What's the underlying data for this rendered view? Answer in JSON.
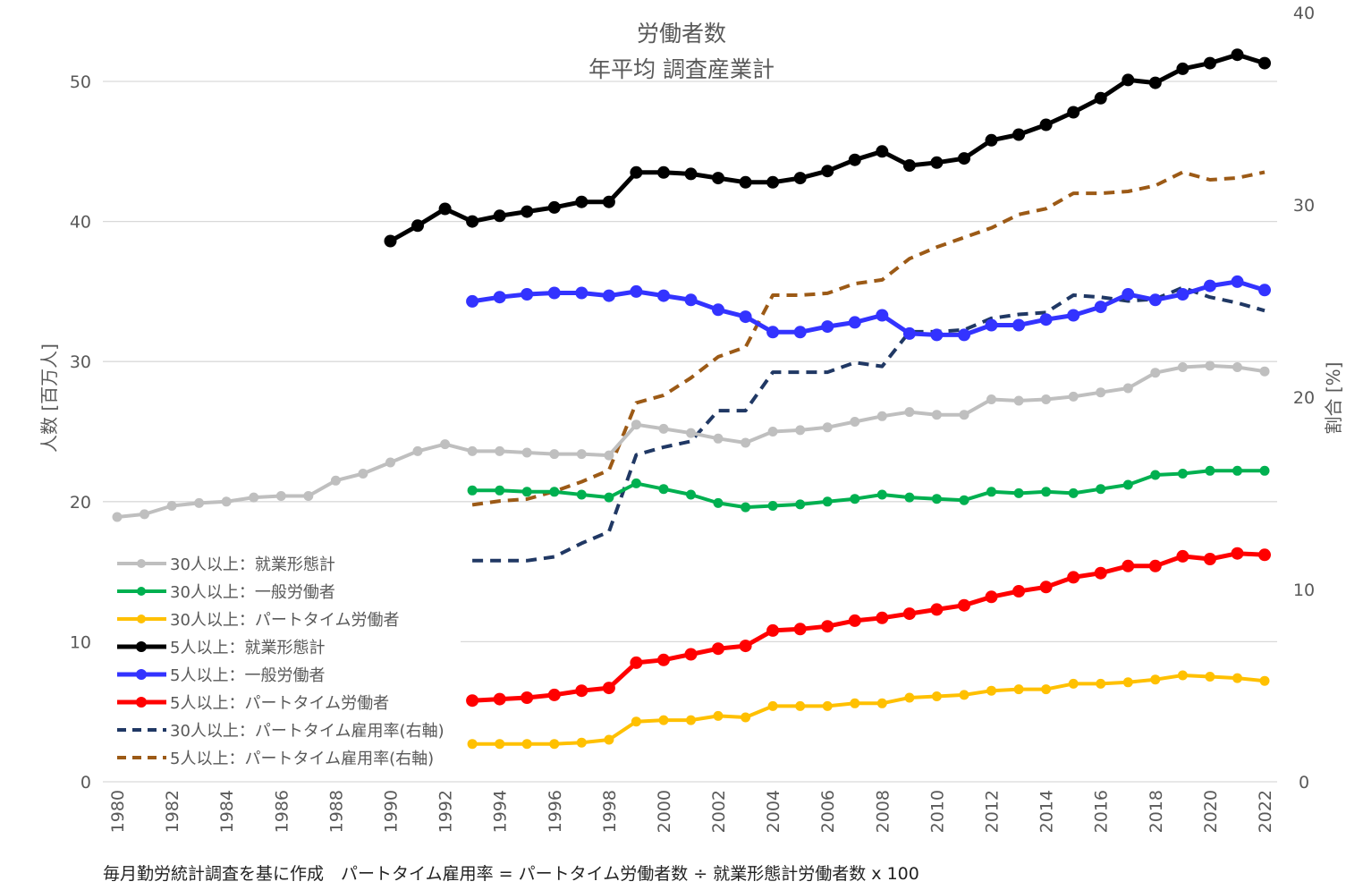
{
  "chart_data": {
    "type": "line",
    "title": [
      "労働者数",
      "年平均 調査産業計"
    ],
    "ylabel_left": "人数 [百万人]",
    "ylabel_right": "割合 [%]",
    "ylim_left": [
      0,
      55
    ],
    "ylim_right": [
      0,
      40
    ],
    "yticks_left": [
      0,
      10,
      20,
      30,
      40,
      50
    ],
    "yticks_right": [
      0,
      10,
      20,
      30,
      40
    ],
    "xlim": [
      1980,
      2022
    ],
    "xticks": [
      1980,
      1982,
      1984,
      1986,
      1988,
      1990,
      1992,
      1994,
      1996,
      1998,
      2000,
      2002,
      2004,
      2006,
      2008,
      2010,
      2012,
      2014,
      2016,
      2018,
      2020,
      2022
    ],
    "grid": true,
    "legend_position": "lower-left",
    "series": [
      {
        "name": "30人以上：就業形態計",
        "axis": "left",
        "color": "#bfbfbf",
        "style": "solid",
        "markers": true,
        "start": 1980,
        "values": [
          18.9,
          19.1,
          19.7,
          19.9,
          20.0,
          20.3,
          20.4,
          20.4,
          21.5,
          22.0,
          22.8,
          23.6,
          24.1,
          23.6,
          23.6,
          23.5,
          23.4,
          23.4,
          23.3,
          25.5,
          25.2,
          24.9,
          24.5,
          24.2,
          25.0,
          25.1,
          25.3,
          25.7,
          26.1,
          26.4,
          26.2,
          26.2,
          27.3,
          27.2,
          27.3,
          27.5,
          27.8,
          28.1,
          29.2,
          29.6,
          29.7,
          29.6,
          29.3
        ]
      },
      {
        "name": "30人以上：一般労働者",
        "axis": "left",
        "color": "#00b050",
        "style": "solid",
        "markers": true,
        "start": 1993,
        "values": [
          20.8,
          20.8,
          20.7,
          20.7,
          20.5,
          20.3,
          21.3,
          20.9,
          20.5,
          19.9,
          19.6,
          19.7,
          19.8,
          20.0,
          20.2,
          20.5,
          20.3,
          20.2,
          20.1,
          20.7,
          20.6,
          20.7,
          20.6,
          20.9,
          21.2,
          21.9,
          22.0,
          22.2,
          22.2,
          22.2
        ]
      },
      {
        "name": "30人以上：パートタイム労働者",
        "axis": "left",
        "color": "#ffc000",
        "style": "solid",
        "markers": true,
        "start": 1993,
        "values": [
          2.7,
          2.7,
          2.7,
          2.7,
          2.8,
          3.0,
          4.3,
          4.4,
          4.4,
          4.7,
          4.6,
          5.4,
          5.4,
          5.4,
          5.6,
          5.6,
          6.0,
          6.1,
          6.2,
          6.5,
          6.6,
          6.6,
          7.0,
          7.0,
          7.1,
          7.3,
          7.6,
          7.5,
          7.4,
          7.2
        ]
      },
      {
        "name": "5人以上：就業形態計",
        "axis": "left",
        "color": "#000000",
        "style": "solid",
        "markers": true,
        "start": 1990,
        "values": [
          38.6,
          39.7,
          40.9,
          40.0,
          40.4,
          40.7,
          41.0,
          41.4,
          41.4,
          43.5,
          43.5,
          43.4,
          43.1,
          42.8,
          42.8,
          43.1,
          43.6,
          44.4,
          45.0,
          44.0,
          44.2,
          44.5,
          45.8,
          46.2,
          46.9,
          47.8,
          48.8,
          50.1,
          49.9,
          50.9,
          51.3,
          51.9,
          51.3
        ]
      },
      {
        "name": "5人以上：一般労働者",
        "axis": "left",
        "color": "#3333ff",
        "style": "solid",
        "markers": true,
        "start": 1993,
        "values": [
          34.3,
          34.6,
          34.8,
          34.9,
          34.9,
          34.7,
          35.0,
          34.7,
          34.4,
          33.7,
          33.2,
          32.1,
          32.1,
          32.5,
          32.8,
          33.3,
          32.0,
          31.9,
          31.9,
          32.6,
          32.6,
          33.0,
          33.3,
          33.9,
          34.8,
          34.4,
          34.8,
          35.4,
          35.7,
          35.1
        ]
      },
      {
        "name": "5人以上：パートタイム労働者",
        "axis": "left",
        "color": "#ff0000",
        "style": "solid",
        "markers": true,
        "start": 1993,
        "values": [
          5.8,
          5.9,
          6.0,
          6.2,
          6.5,
          6.7,
          8.5,
          8.7,
          9.1,
          9.5,
          9.7,
          10.8,
          10.9,
          11.1,
          11.5,
          11.7,
          12.0,
          12.3,
          12.6,
          13.2,
          13.6,
          13.9,
          14.6,
          14.9,
          15.4,
          15.4,
          16.1,
          15.9,
          16.3,
          16.2
        ]
      },
      {
        "name": "30人以上：パートタイム雇用率(右軸)",
        "axis": "right",
        "color": "#203864",
        "style": "dashed",
        "markers": false,
        "start": 1993,
        "values": [
          11.5,
          11.5,
          11.5,
          11.7,
          12.4,
          13.0,
          17.0,
          17.4,
          17.7,
          19.3,
          19.3,
          21.3,
          21.3,
          21.3,
          21.8,
          21.6,
          23.4,
          23.4,
          23.5,
          24.1,
          24.3,
          24.4,
          25.3,
          25.2,
          25.0,
          25.1,
          25.7,
          25.2,
          24.9,
          24.5
        ]
      },
      {
        "name": "5人以上：パートタイム雇用率(右軸)",
        "axis": "right",
        "color": "#9c5a16",
        "style": "dashed",
        "markers": false,
        "start": 1993,
        "values": [
          14.4,
          14.6,
          14.7,
          15.1,
          15.6,
          16.2,
          19.7,
          20.1,
          21.0,
          22.1,
          22.6,
          25.3,
          25.3,
          25.4,
          25.9,
          26.1,
          27.2,
          27.8,
          28.3,
          28.8,
          29.5,
          29.8,
          30.6,
          30.6,
          30.7,
          31.0,
          31.7,
          31.3,
          31.4,
          31.7
        ]
      }
    ]
  },
  "footnote": "毎月勤労統計調査を基に作成　パートタイム雇用率 = パートタイム労働者数 ÷ 就業形態計労働者数 x 100"
}
